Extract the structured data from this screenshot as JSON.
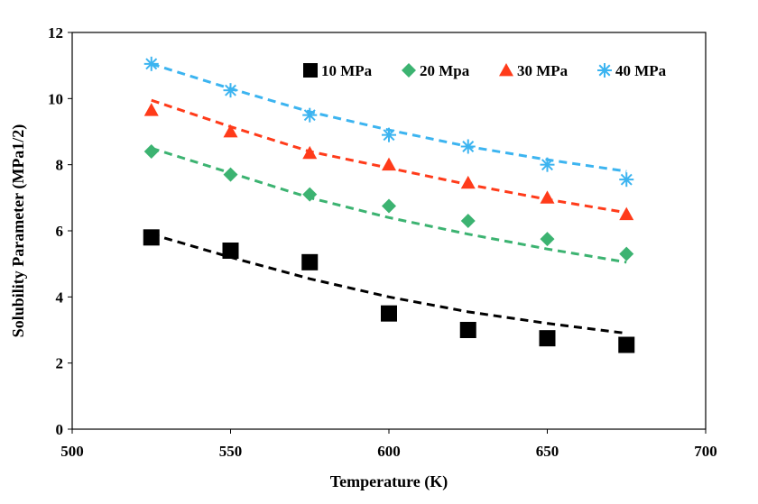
{
  "chart_data": {
    "type": "scatter",
    "title": "",
    "xlabel": "Temperature (K)",
    "ylabel": "Solubility Parameter (MPa1/2)",
    "xlim": [
      500,
      700
    ],
    "ylim": [
      0,
      12
    ],
    "xticks": [
      500,
      550,
      600,
      650,
      700
    ],
    "yticks": [
      0,
      2,
      4,
      6,
      8,
      10,
      12
    ],
    "grid": false,
    "legend_position": "top-right",
    "x": [
      525,
      550,
      575,
      600,
      625,
      650,
      675
    ],
    "series": [
      {
        "name": "10 MPa",
        "marker": "square",
        "color": "#000000",
        "values": [
          5.8,
          5.4,
          5.05,
          3.5,
          3.0,
          2.75,
          2.55
        ],
        "fit": [
          5.9,
          5.2,
          4.55,
          4.0,
          3.55,
          3.2,
          2.9
        ]
      },
      {
        "name": "20 Mpa",
        "marker": "diamond",
        "color": "#3cb371",
        "values": [
          8.4,
          7.7,
          7.1,
          6.75,
          6.3,
          5.75,
          5.3
        ],
        "fit": [
          8.5,
          7.75,
          7.0,
          6.4,
          5.9,
          5.45,
          5.05
        ]
      },
      {
        "name": "30 MPa",
        "marker": "triangle",
        "color": "#ff3b1a",
        "values": [
          9.65,
          9.0,
          8.35,
          8.0,
          7.45,
          7.0,
          6.5
        ],
        "fit": [
          9.95,
          9.15,
          8.4,
          7.9,
          7.4,
          6.95,
          6.55
        ]
      },
      {
        "name": "40 MPa",
        "marker": "asterisk",
        "color": "#3cb4f0",
        "values": [
          11.05,
          10.25,
          9.5,
          8.9,
          8.55,
          8.0,
          7.55
        ],
        "fit": [
          11.05,
          10.3,
          9.6,
          9.05,
          8.55,
          8.15,
          7.8
        ]
      }
    ]
  }
}
